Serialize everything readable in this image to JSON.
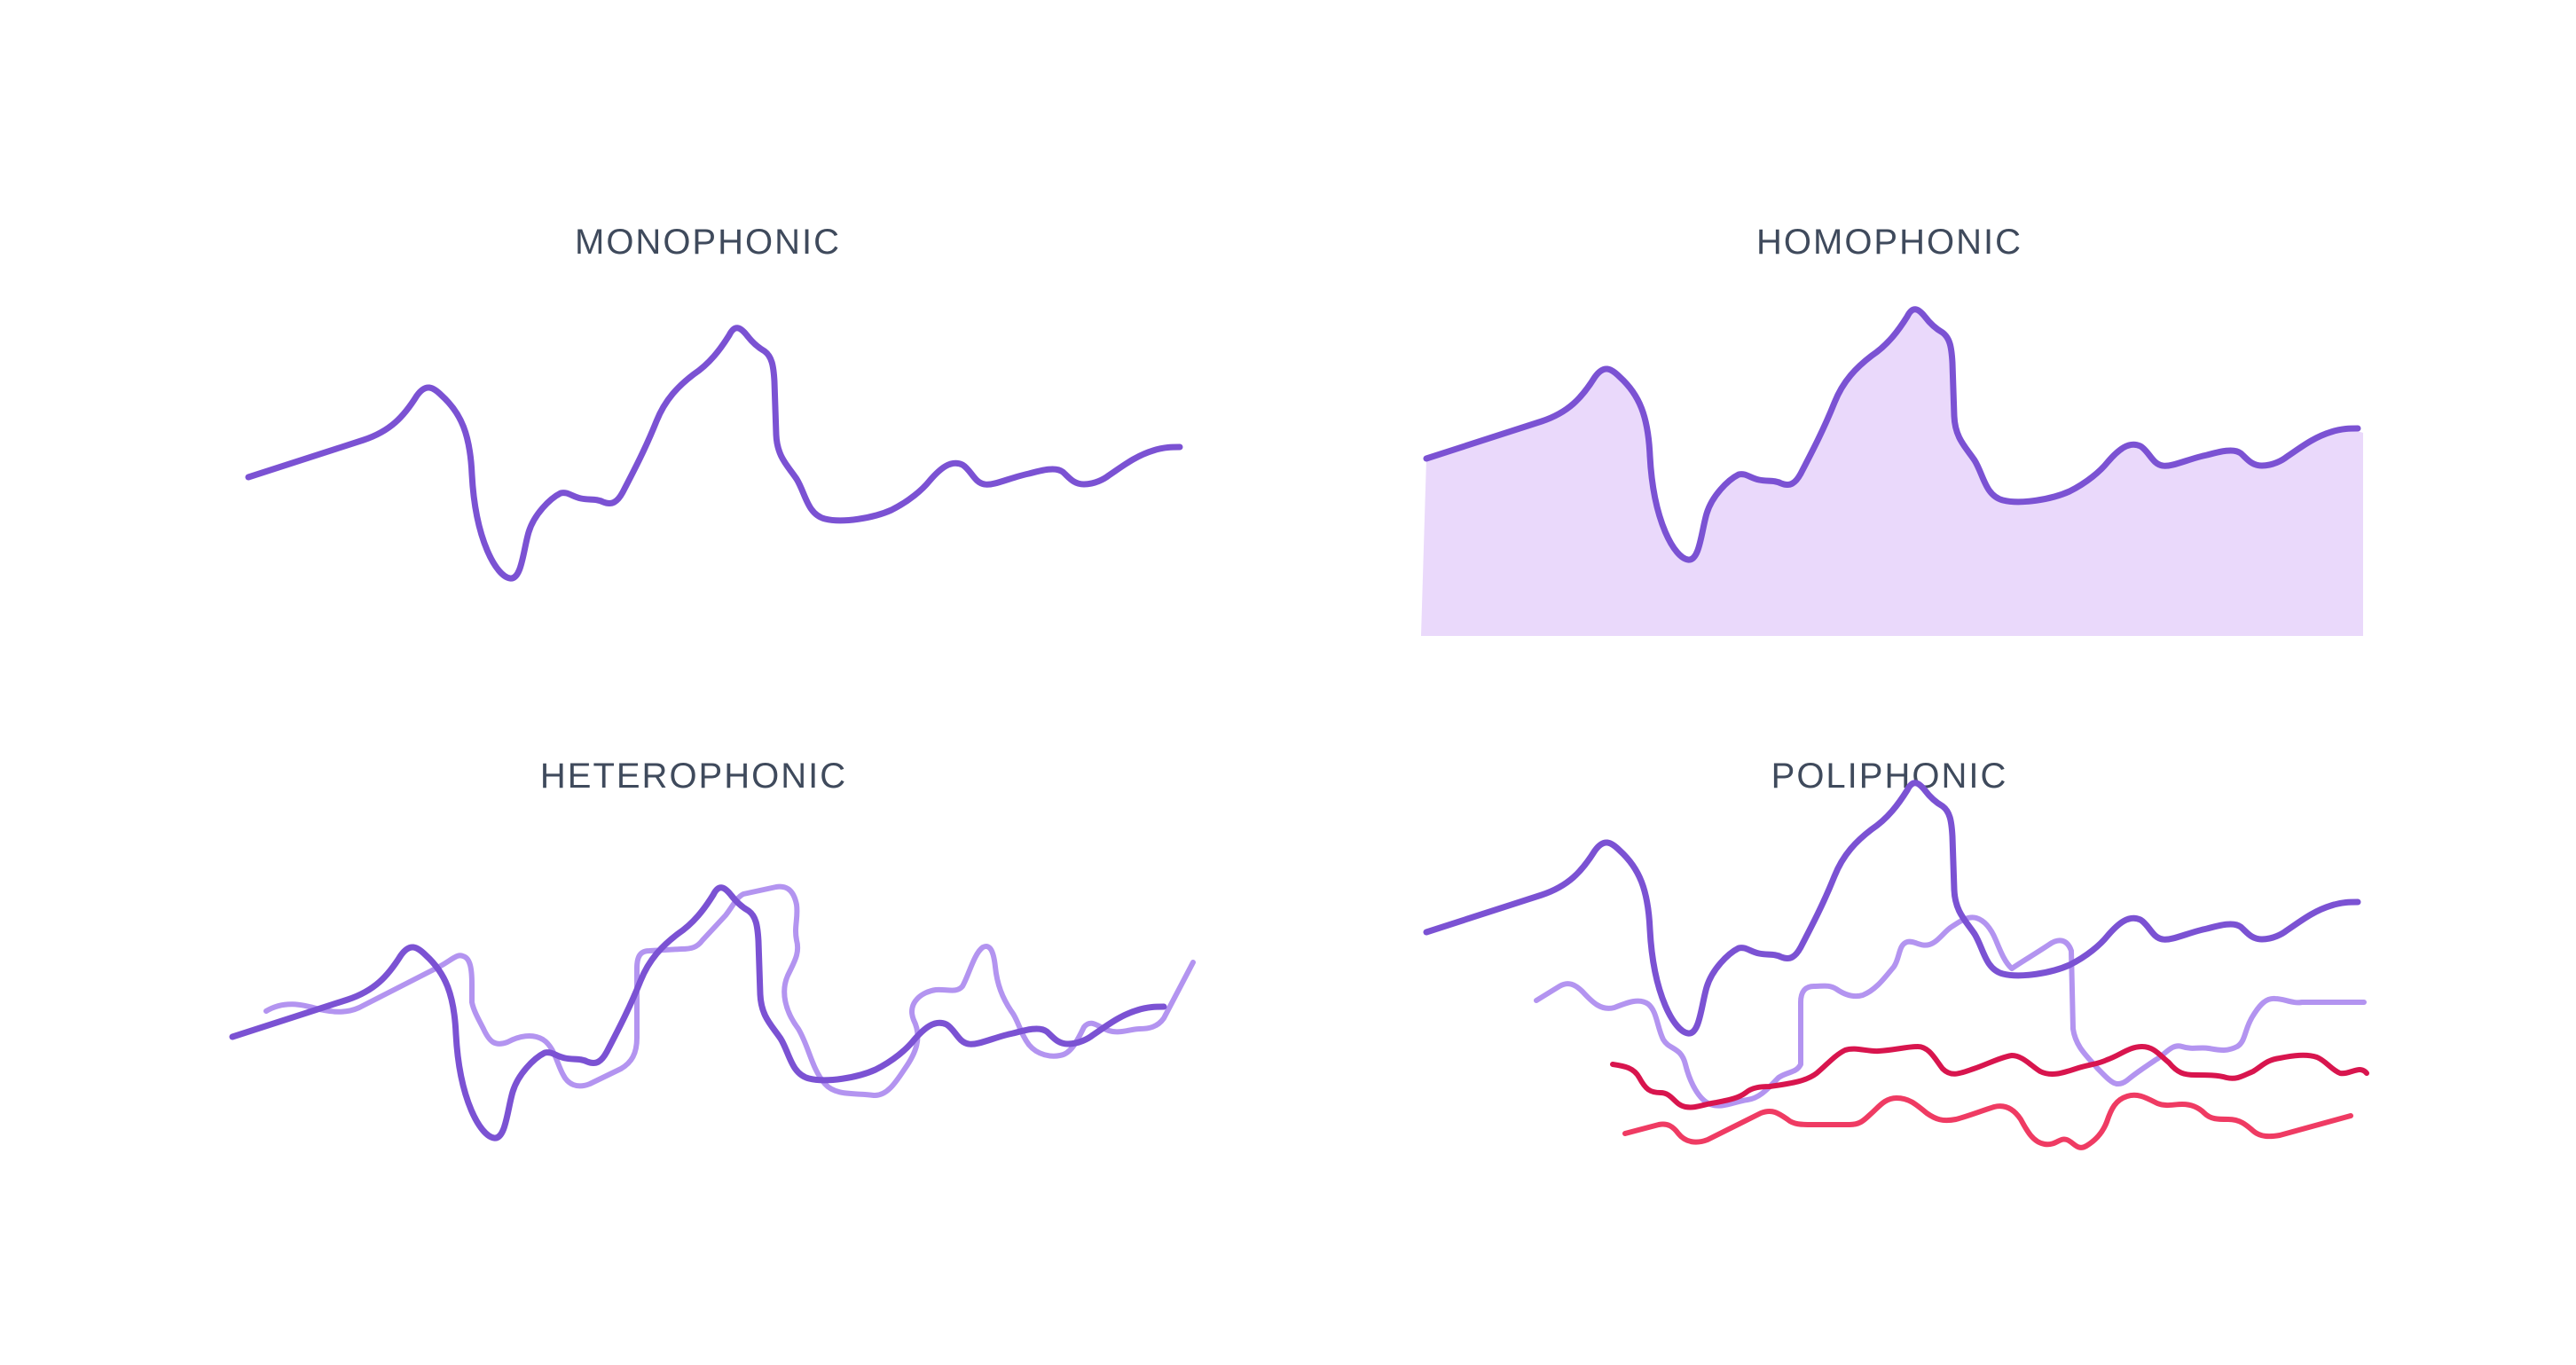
{
  "panels": {
    "monophonic": {
      "title": "MONOPHONIC"
    },
    "homophonic": {
      "title": "HOMOPHONIC"
    },
    "heterophonic": {
      "title": "HETEROPHONIC"
    },
    "poliphonic": {
      "title": "POLIPHONIC"
    }
  },
  "colors": {
    "main_voice": "#7b52d3",
    "light_voice": "#b394f0",
    "fill_area": "#ead9fb",
    "red_voice": "#d8154e",
    "pink_voice": "#ef3b63",
    "title_text": "#3f4a5c"
  }
}
